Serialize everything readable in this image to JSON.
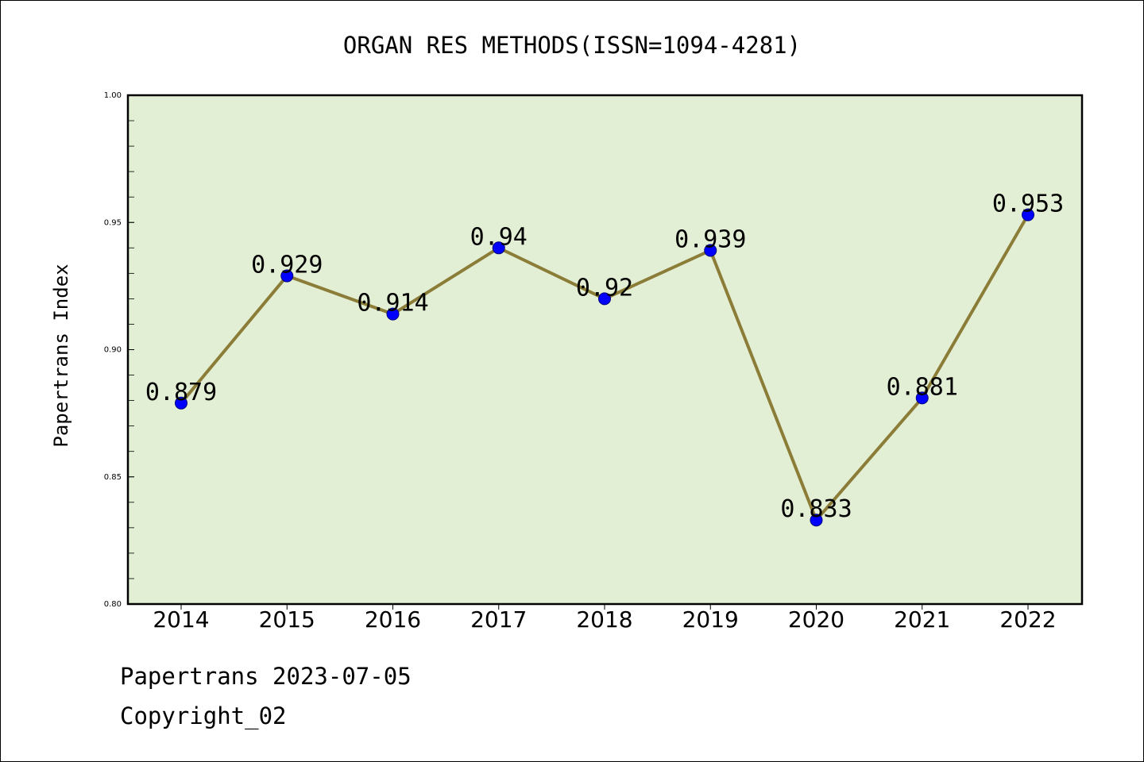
{
  "chart_data": {
    "type": "line",
    "title": "ORGAN RES METHODS(ISSN=1094-4281)",
    "xlabel": "",
    "ylabel": "Papertrans Index",
    "categories": [
      "2014",
      "2015",
      "2016",
      "2017",
      "2018",
      "2019",
      "2020",
      "2021",
      "2022"
    ],
    "series": [
      {
        "values": [
          0.879,
          0.929,
          0.914,
          0.94,
          0.92,
          0.939,
          0.833,
          0.881,
          0.953
        ]
      }
    ],
    "data_labels": [
      "0.879",
      "0.929",
      "0.914",
      "0.94",
      "0.92",
      "0.939",
      "0.833",
      "0.881",
      "0.953"
    ],
    "ylim": [
      0.8,
      1.0
    ],
    "yticks": [
      "0.80",
      "0.85",
      "0.90",
      "0.95",
      "1.00"
    ],
    "grid": false,
    "legend": "none",
    "colors": {
      "plot_background": "#e2efd5",
      "line": "#8b7d37",
      "marker": "#0000ff"
    }
  },
  "footer": {
    "line1": "Papertrans 2023-07-05",
    "line2": "Copyright_02"
  }
}
